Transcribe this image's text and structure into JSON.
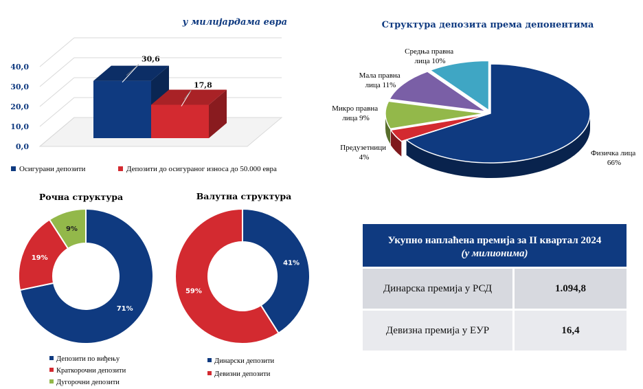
{
  "chart_data": [
    {
      "type": "bar",
      "title": "у милијардама   евра",
      "categories": [
        "Осигурани депозити",
        "Депозити до осигураног износа до 50.000 евра"
      ],
      "values": [
        30.6,
        17.8
      ],
      "value_labels": [
        "30,6",
        "17,8"
      ],
      "yticks": [
        "0,0",
        "10,0",
        "20,0",
        "30,0",
        "40,0"
      ],
      "ylim": [
        0,
        40
      ],
      "colors": [
        "#0f3a80",
        "#d32a30"
      ],
      "legend": [
        "Осигурани депозити",
        "Депозити до осигураног износа до 50.000 евра"
      ]
    },
    {
      "type": "pie",
      "title": "Структура депозита према депонентима",
      "slices": [
        {
          "name": "Физичка лица",
          "value": 66,
          "label_line1": "Физичка лица",
          "label_line2": "66%",
          "color": "#0f3a80"
        },
        {
          "name": "Предузетници",
          "value": 4,
          "label_line1": "Предузетници",
          "label_line2": "4%",
          "color": "#d32a30"
        },
        {
          "name": "Микро правна лица",
          "value": 9,
          "label_line1": "Микро правна",
          "label_line2": "лица 9%",
          "color": "#93b84a"
        },
        {
          "name": "Мала правна лица",
          "value": 11,
          "label_line1": "Мала правна",
          "label_line2": "лица 11%",
          "color": "#7a5fa6"
        },
        {
          "name": "Средња правна лица",
          "value": 10,
          "label_line1": "Средња правна",
          "label_line2": "лица 10%",
          "color": "#3fa6c4"
        }
      ]
    },
    {
      "type": "pie",
      "subtype": "donut",
      "title": "Рочна структура",
      "slices": [
        {
          "name": "Депозити по виђењу",
          "value": 71,
          "label": "71%",
          "color": "#0f3a80"
        },
        {
          "name": "Краткорочни депозити",
          "value": 19,
          "label": "19%",
          "color": "#d32a30"
        },
        {
          "name": "Дугорочни депозити",
          "value": 9,
          "label": "9%",
          "color": "#93b84a"
        }
      ]
    },
    {
      "type": "pie",
      "subtype": "donut",
      "title": "Валутна структура",
      "slices": [
        {
          "name": "Динарски депозити",
          "value": 41,
          "label": "41%",
          "color": "#0f3a80"
        },
        {
          "name": "Девизни депозити",
          "value": 59,
          "label": "59%",
          "color": "#d32a30"
        }
      ]
    }
  ],
  "premium_table": {
    "title": "Укупно наплаћена премија за II квартал 2024",
    "subtitle": "(у милионима)",
    "rows": [
      {
        "label": "Динарска премија у РСД",
        "value": "1.094,8"
      },
      {
        "label": "Девизна премија у ЕУР",
        "value": "16,4"
      }
    ]
  }
}
